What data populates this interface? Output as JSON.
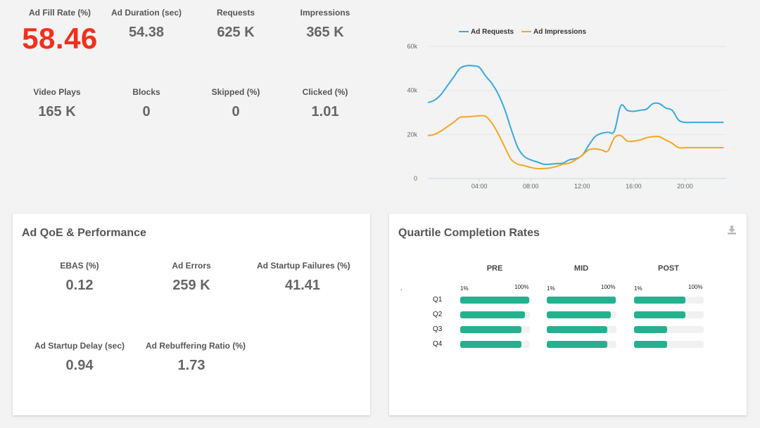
{
  "top_metrics": [
    {
      "label": "Ad Fill Rate (%)",
      "value": "58.46"
    },
    {
      "label": "Ad Duration (sec)",
      "value": "54.38"
    },
    {
      "label": "Requests",
      "value": "625 K"
    },
    {
      "label": "Impressions",
      "value": "365 K"
    },
    {
      "label": "Video Plays",
      "value": "165 K"
    },
    {
      "label": "Blocks",
      "value": "0"
    },
    {
      "label": "Skipped (%)",
      "value": "0"
    },
    {
      "label": "Clicked (%)",
      "value": "1.01"
    }
  ],
  "chart_data": {
    "type": "line",
    "title": "",
    "xlabel": "",
    "ylabel": "",
    "x": [
      0,
      0.5,
      1,
      1.5,
      2,
      2.5,
      3,
      3.5,
      4,
      4.5,
      5,
      5.5,
      6,
      6.5,
      7,
      7.5,
      8,
      8.5,
      9,
      9.5,
      10,
      10.5,
      11,
      11.5,
      12,
      12.5,
      13,
      13.5,
      14,
      14.5,
      15,
      15.5,
      16,
      16.5,
      17,
      17.5,
      18,
      18.5,
      19,
      19.5,
      20,
      20.5,
      21,
      21.5,
      22,
      22.5,
      23
    ],
    "x_ticks": [
      {
        "value": 4,
        "label": "04:00"
      },
      {
        "value": 8,
        "label": "08:00"
      },
      {
        "value": 12,
        "label": "12:00"
      },
      {
        "value": 16,
        "label": "16:00"
      },
      {
        "value": 20,
        "label": "20:00"
      }
    ],
    "y_ticks": [
      {
        "value": 0,
        "label": "0"
      },
      {
        "value": 20000,
        "label": "20k"
      },
      {
        "value": 40000,
        "label": "40k"
      },
      {
        "value": 60000,
        "label": "60k"
      }
    ],
    "xlim": [
      0,
      23.2
    ],
    "ylim": [
      0,
      60000
    ],
    "grid": true,
    "legend_position": "top",
    "series": [
      {
        "name": "Ad Requests",
        "color": "#3ba8d8",
        "values": [
          34500,
          35500,
          38000,
          42000,
          46000,
          50000,
          51200,
          51200,
          50500,
          46500,
          43000,
          38000,
          31000,
          22000,
          14000,
          10000,
          8500,
          7500,
          6500,
          6500,
          6800,
          7000,
          8500,
          9000,
          10500,
          15000,
          19000,
          20500,
          21000,
          21500,
          33000,
          31000,
          30500,
          31000,
          31500,
          34000,
          34000,
          32000,
          31000,
          26500,
          25500,
          25500,
          25500,
          25500,
          25500,
          25500,
          25500
        ]
      },
      {
        "name": "Ad Impressions",
        "color": "#f5a623",
        "values": [
          19500,
          20000,
          21500,
          23500,
          25500,
          27800,
          28000,
          28200,
          28500,
          28200,
          25000,
          20000,
          14000,
          8500,
          6500,
          5800,
          5000,
          4500,
          4500,
          4800,
          5500,
          6500,
          7000,
          8500,
          10500,
          13000,
          13500,
          13000,
          12500,
          18500,
          19500,
          17000,
          17000,
          17500,
          18500,
          19000,
          19000,
          17500,
          16000,
          14000,
          14000,
          14000,
          14000,
          14000,
          14000,
          14000,
          14000
        ]
      }
    ]
  },
  "qoe": {
    "title": "Ad QoE & Performance",
    "metrics": [
      {
        "label": "EBAS (%)",
        "value": "0.12"
      },
      {
        "label": "Ad Errors",
        "value": "259 K"
      },
      {
        "label": "Ad Startup Failures (%)",
        "value": "41.41"
      },
      {
        "label": "Ad Startup Delay (sec)",
        "value": "0.94"
      },
      {
        "label": "Ad Rebuffering Ratio (%)",
        "value": "1.73"
      }
    ]
  },
  "quartile": {
    "title": "Quartile Completion Rates",
    "download_icon": "download-icon",
    "dot": ".",
    "scale_min": "1%",
    "scale_max": "100%",
    "columns": [
      "PRE",
      "MID",
      "POST"
    ],
    "rows": [
      "Q1",
      "Q2",
      "Q3",
      "Q4"
    ],
    "values": [
      [
        99,
        99,
        74
      ],
      [
        93,
        92,
        74
      ],
      [
        88,
        87,
        47
      ],
      [
        88,
        87,
        47
      ]
    ],
    "bar_color": "#26b08f"
  }
}
